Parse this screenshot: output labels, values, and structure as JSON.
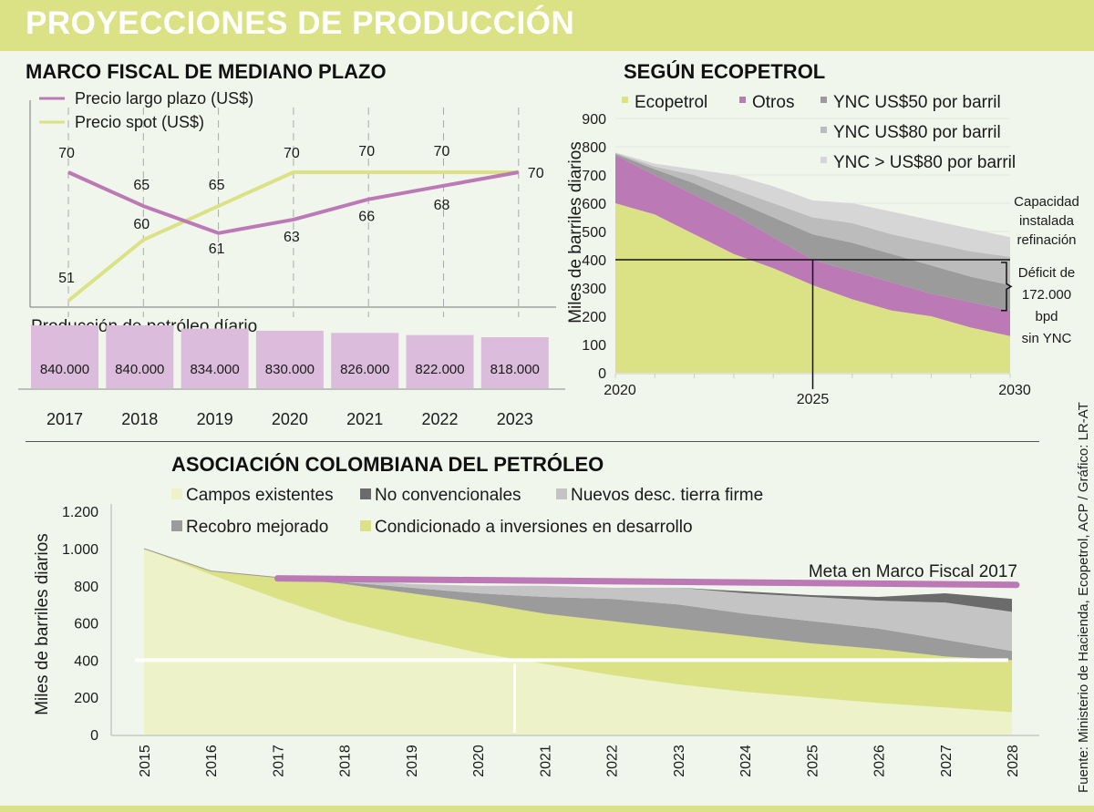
{
  "header": {
    "title": "PROYECCIONES DE PRODUCCIÓN"
  },
  "source": "Fuente: Ministerio de Hacienda, Ecopetrol, ACP  / Gráfico: LR-AT",
  "colors": {
    "header_bg": "#dbe285",
    "page_bg": "#f1f6ec",
    "purple": "#bb79b5",
    "lime": "#dbe285",
    "pale_lime": "#edf2c8",
    "bar_fill": "#dcbcdc",
    "gray_dark": "#6b6b6b",
    "gray_mid": "#9b9b9b",
    "gray_light": "#c4c4c4",
    "gray_lighter": "#d6d6d6"
  },
  "chart_data": [
    {
      "id": "marco_fiscal",
      "type": "line",
      "title": "MARCO FISCAL DE MEDIANO PLAZO",
      "x": [
        "2017",
        "2018",
        "2019",
        "2020",
        "2021",
        "2022",
        "2023"
      ],
      "series": [
        {
          "name": "Precio largo plazo (US$)",
          "color": "#bb79b5",
          "values": [
            70,
            65,
            61,
            63,
            66,
            68,
            70
          ]
        },
        {
          "name": "Precio spot (US$)",
          "color": "#dbe285",
          "values": [
            51,
            60,
            65,
            70,
            70,
            70,
            70
          ]
        }
      ],
      "ylim": [
        50,
        72
      ],
      "grid": "vertical dashed",
      "legend": "top-left"
    },
    {
      "id": "produccion_diaria",
      "type": "bar",
      "title": "Producción de petróleo díario",
      "categories": [
        "2017",
        "2018",
        "2019",
        "2020",
        "2021",
        "2022",
        "2023"
      ],
      "values": [
        840000,
        840000,
        834000,
        830000,
        826000,
        822000,
        818000
      ],
      "value_labels": [
        "840.000",
        "840.000",
        "834.000",
        "830.000",
        "826.000",
        "822.000",
        "818.000"
      ]
    },
    {
      "id": "ecopetrol",
      "type": "area",
      "title": "SEGÚN ECOPETROL",
      "ylabel": "Miles de barriles diarios",
      "ylim": [
        0,
        900
      ],
      "yticks": [
        0,
        100,
        200,
        300,
        400,
        500,
        600,
        700,
        800,
        900
      ],
      "x": [
        2020,
        2021,
        2022,
        2023,
        2024,
        2025,
        2026,
        2027,
        2028,
        2029,
        2030
      ],
      "xtick_labels": [
        "2020",
        "2025",
        "2030"
      ],
      "stacked": true,
      "series": [
        {
          "name": "Ecopetrol",
          "color": "#dbe285",
          "values": [
            600,
            560,
            490,
            420,
            370,
            310,
            260,
            220,
            200,
            160,
            130
          ]
        },
        {
          "name": "Otros",
          "color": "#bb79b5",
          "values": [
            170,
            140,
            140,
            140,
            110,
            90,
            100,
            100,
            80,
            90,
            90
          ]
        },
        {
          "name": "YNC US$50 por barril",
          "color": "#9b9b9b",
          "values": [
            5,
            20,
            40,
            50,
            70,
            90,
            100,
            100,
            100,
            90,
            90
          ]
        },
        {
          "name": "YNC US$80 por barril",
          "color": "#bcbcbc",
          "values": [
            3,
            10,
            30,
            40,
            50,
            60,
            70,
            70,
            80,
            90,
            100
          ]
        },
        {
          "name": "YNC  > US$80 por barril",
          "color": "#d6d6d6",
          "values": [
            2,
            10,
            20,
            50,
            60,
            60,
            70,
            80,
            80,
            80,
            70
          ]
        }
      ],
      "reference_line": {
        "y": 400,
        "x": 2025,
        "label": "Capacidad instalada refinación"
      },
      "annotation": {
        "text": [
          "Déficit de",
          "172.000",
          "bpd",
          "sin YNC"
        ],
        "range": [
          220,
          400
        ]
      },
      "legend": "top"
    },
    {
      "id": "acp",
      "type": "area",
      "title": "ASOCIACIÓN COLOMBIANA DEL PETRÓLEO",
      "ylabel": "Miles de barriles diarios",
      "ylim": [
        0,
        1200
      ],
      "yticks": [
        0,
        200,
        400,
        600,
        800,
        1000,
        1200
      ],
      "ytick_labels": [
        "0",
        "200",
        "400",
        "600",
        "800",
        "1.000",
        "1.200"
      ],
      "x": [
        2015,
        2016,
        2017,
        2018,
        2019,
        2020,
        2021,
        2022,
        2023,
        2024,
        2025,
        2026,
        2027,
        2028
      ],
      "stacked": true,
      "series": [
        {
          "name": "Campos existentes",
          "color": "#edf2c8",
          "values": [
            1000,
            860,
            730,
            610,
            520,
            440,
            380,
            320,
            270,
            230,
            200,
            170,
            145,
            120
          ]
        },
        {
          "name": "Condicionado a inversiones en desarrollo",
          "color": "#dbe285",
          "values": [
            0,
            20,
            115,
            200,
            240,
            270,
            270,
            290,
            300,
            300,
            290,
            290,
            275,
            280
          ]
        },
        {
          "name": "Recobro mejorado",
          "color": "#9b9b9b",
          "values": [
            0,
            0,
            0,
            10,
            30,
            50,
            90,
            120,
            130,
            120,
            120,
            110,
            90,
            50
          ]
        },
        {
          "name": "Nuevos desc. tierra firme",
          "color": "#c4c4c4",
          "values": [
            0,
            0,
            0,
            10,
            20,
            40,
            60,
            60,
            90,
            110,
            130,
            150,
            200,
            210
          ]
        },
        {
          "name": "No convencionales",
          "color": "#6b6b6b",
          "values": [
            0,
            0,
            0,
            0,
            0,
            0,
            0,
            0,
            0,
            10,
            10,
            20,
            50,
            70
          ]
        }
      ],
      "legend_order": [
        "Campos existentes",
        "No convencionales",
        "Nuevos desc. tierra firme",
        "Recobro mejorado",
        "Condicionado a inversiones en desarrollo"
      ],
      "target_line": {
        "label": "Meta en Marco Fiscal 2017",
        "from": 2017,
        "to": 2028,
        "values_start": 840,
        "values_end": 805,
        "color": "#bb79b5"
      },
      "reference_line": {
        "y": 400,
        "x": 2020.55
      },
      "legend": "top"
    }
  ]
}
